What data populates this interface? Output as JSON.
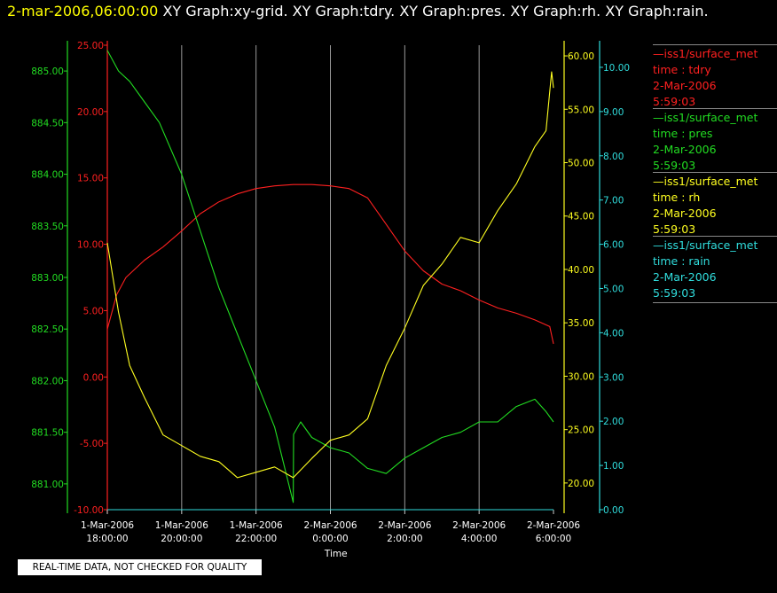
{
  "header": {
    "date": "2-mar-2006,06:00:00",
    "graphs": "XY Graph:xy-grid.  XY Graph:tdry.  XY Graph:pres.  XY Graph:rh.  XY Graph:rain."
  },
  "legend": [
    {
      "line": "—iss1/surface_met",
      "var": "time : tdry",
      "date": "2-Mar-2006",
      "time": "5:59:03",
      "color": "#ff2020"
    },
    {
      "line": "—iss1/surface_met",
      "var": "time : pres",
      "date": "2-Mar-2006",
      "time": "5:59:03",
      "color": "#22dd22"
    },
    {
      "line": "—iss1/surface_met",
      "var": "time : rh",
      "date": "2-Mar-2006",
      "time": "5:59:03",
      "color": "#ffff20"
    },
    {
      "line": "—iss1/surface_met",
      "var": "time : rain",
      "date": "2-Mar-2006",
      "time": "5:59:03",
      "color": "#30dddd"
    }
  ],
  "quality_note": "REAL-TIME DATA, NOT CHECKED FOR QUALITY",
  "chart_data": {
    "type": "line",
    "xlabel": "Time",
    "x_ticks": [
      {
        "hour": 0,
        "date": "1-Mar-2006",
        "time": "18:00:00"
      },
      {
        "hour": 2,
        "date": "1-Mar-2006",
        "time": "20:00:00"
      },
      {
        "hour": 4,
        "date": "1-Mar-2006",
        "time": "22:00:00"
      },
      {
        "hour": 6,
        "date": "2-Mar-2006",
        "time": "0:00:00"
      },
      {
        "hour": 8,
        "date": "2-Mar-2006",
        "time": "2:00:00"
      },
      {
        "hour": 10,
        "date": "2-Mar-2006",
        "time": "4:00:00"
      },
      {
        "hour": 12,
        "date": "2-Mar-2006",
        "time": "6:00:00"
      }
    ],
    "grid": true,
    "axes": {
      "tdry": {
        "min": -10,
        "max": 25,
        "ticks": [
          "-10.00",
          "-5.00",
          "0.00",
          "5.00",
          "10.00",
          "15.00",
          "20.00",
          "25.00"
        ],
        "color": "#ff2020"
      },
      "pres": {
        "min": 880.75,
        "max": 885.25,
        "ticks": [
          "881.00",
          "881.50",
          "882.00",
          "882.50",
          "883.00",
          "883.50",
          "884.00",
          "884.50",
          "885.00"
        ],
        "color": "#22dd22"
      },
      "rh": {
        "min": 17.5,
        "max": 61,
        "ticks": [
          "20.00",
          "25.00",
          "30.00",
          "35.00",
          "40.00",
          "45.00",
          "50.00",
          "55.00",
          "60.00"
        ],
        "color": "#ffff20"
      },
      "rain": {
        "min": 0,
        "max": 10.5,
        "ticks": [
          "0.00",
          "1.00",
          "2.00",
          "3.00",
          "4.00",
          "5.00",
          "6.00",
          "7.00",
          "8.00",
          "9.00",
          "10.00"
        ],
        "color": "#30dddd"
      }
    },
    "series": [
      {
        "name": "tdry",
        "axis": "tdry",
        "color": "#ff2020",
        "points": [
          [
            0,
            3.6
          ],
          [
            0.25,
            6.2
          ],
          [
            0.5,
            7.5
          ],
          [
            1,
            8.8
          ],
          [
            1.5,
            9.8
          ],
          [
            2,
            11.0
          ],
          [
            2.5,
            12.3
          ],
          [
            3,
            13.2
          ],
          [
            3.5,
            13.8
          ],
          [
            4,
            14.2
          ],
          [
            4.5,
            14.4
          ],
          [
            5,
            14.5
          ],
          [
            5.5,
            14.5
          ],
          [
            6,
            14.4
          ],
          [
            6.5,
            14.2
          ],
          [
            7,
            13.5
          ],
          [
            7.5,
            11.5
          ],
          [
            8,
            9.5
          ],
          [
            8.5,
            8.0
          ],
          [
            9,
            7.0
          ],
          [
            9.5,
            6.5
          ],
          [
            10,
            5.8
          ],
          [
            10.5,
            5.2
          ],
          [
            11,
            4.8
          ],
          [
            11.5,
            4.3
          ],
          [
            11.9,
            3.8
          ],
          [
            12,
            2.5
          ]
        ]
      },
      {
        "name": "pres",
        "axis": "pres",
        "color": "#22dd22",
        "points": [
          [
            0,
            885.2
          ],
          [
            0.3,
            885.0
          ],
          [
            0.6,
            884.9
          ],
          [
            1,
            884.7
          ],
          [
            1.4,
            884.5
          ],
          [
            2,
            884.0
          ],
          [
            2.5,
            883.45
          ],
          [
            3,
            882.9
          ],
          [
            3.5,
            882.45
          ],
          [
            4,
            882.0
          ],
          [
            4.5,
            881.55
          ],
          [
            5,
            880.82
          ],
          [
            5.01,
            881.48
          ],
          [
            5.2,
            881.6
          ],
          [
            5.5,
            881.45
          ],
          [
            6,
            881.35
          ],
          [
            6.5,
            881.3
          ],
          [
            7,
            881.15
          ],
          [
            7.5,
            881.1
          ],
          [
            8,
            881.25
          ],
          [
            8.5,
            881.35
          ],
          [
            9,
            881.45
          ],
          [
            9.5,
            881.5
          ],
          [
            10,
            881.6
          ],
          [
            10.5,
            881.6
          ],
          [
            11,
            881.75
          ],
          [
            11.5,
            881.82
          ],
          [
            11.8,
            881.7
          ],
          [
            12,
            881.6
          ]
        ]
      },
      {
        "name": "rh",
        "axis": "rh",
        "color": "#ffff20",
        "points": [
          [
            0,
            42.5
          ],
          [
            0.3,
            36
          ],
          [
            0.6,
            31
          ],
          [
            1,
            28
          ],
          [
            1.5,
            24.5
          ],
          [
            2,
            23.5
          ],
          [
            2.5,
            22.5
          ],
          [
            3,
            22
          ],
          [
            3.5,
            20.5
          ],
          [
            4,
            21
          ],
          [
            4.5,
            21.5
          ],
          [
            5,
            20.5
          ],
          [
            5.5,
            22.3
          ],
          [
            6,
            24
          ],
          [
            6.5,
            24.5
          ],
          [
            7,
            26
          ],
          [
            7.5,
            31
          ],
          [
            8,
            34.5
          ],
          [
            8.5,
            38.5
          ],
          [
            9,
            40.5
          ],
          [
            9.5,
            43
          ],
          [
            10,
            42.5
          ],
          [
            10.5,
            45.5
          ],
          [
            11,
            48
          ],
          [
            11.5,
            51.5
          ],
          [
            11.8,
            53
          ],
          [
            11.95,
            58.5
          ],
          [
            12,
            57
          ]
        ]
      },
      {
        "name": "rain",
        "axis": "rain",
        "color": "#30dddd",
        "points": [
          [
            0,
            0
          ],
          [
            12,
            0
          ]
        ]
      }
    ]
  }
}
